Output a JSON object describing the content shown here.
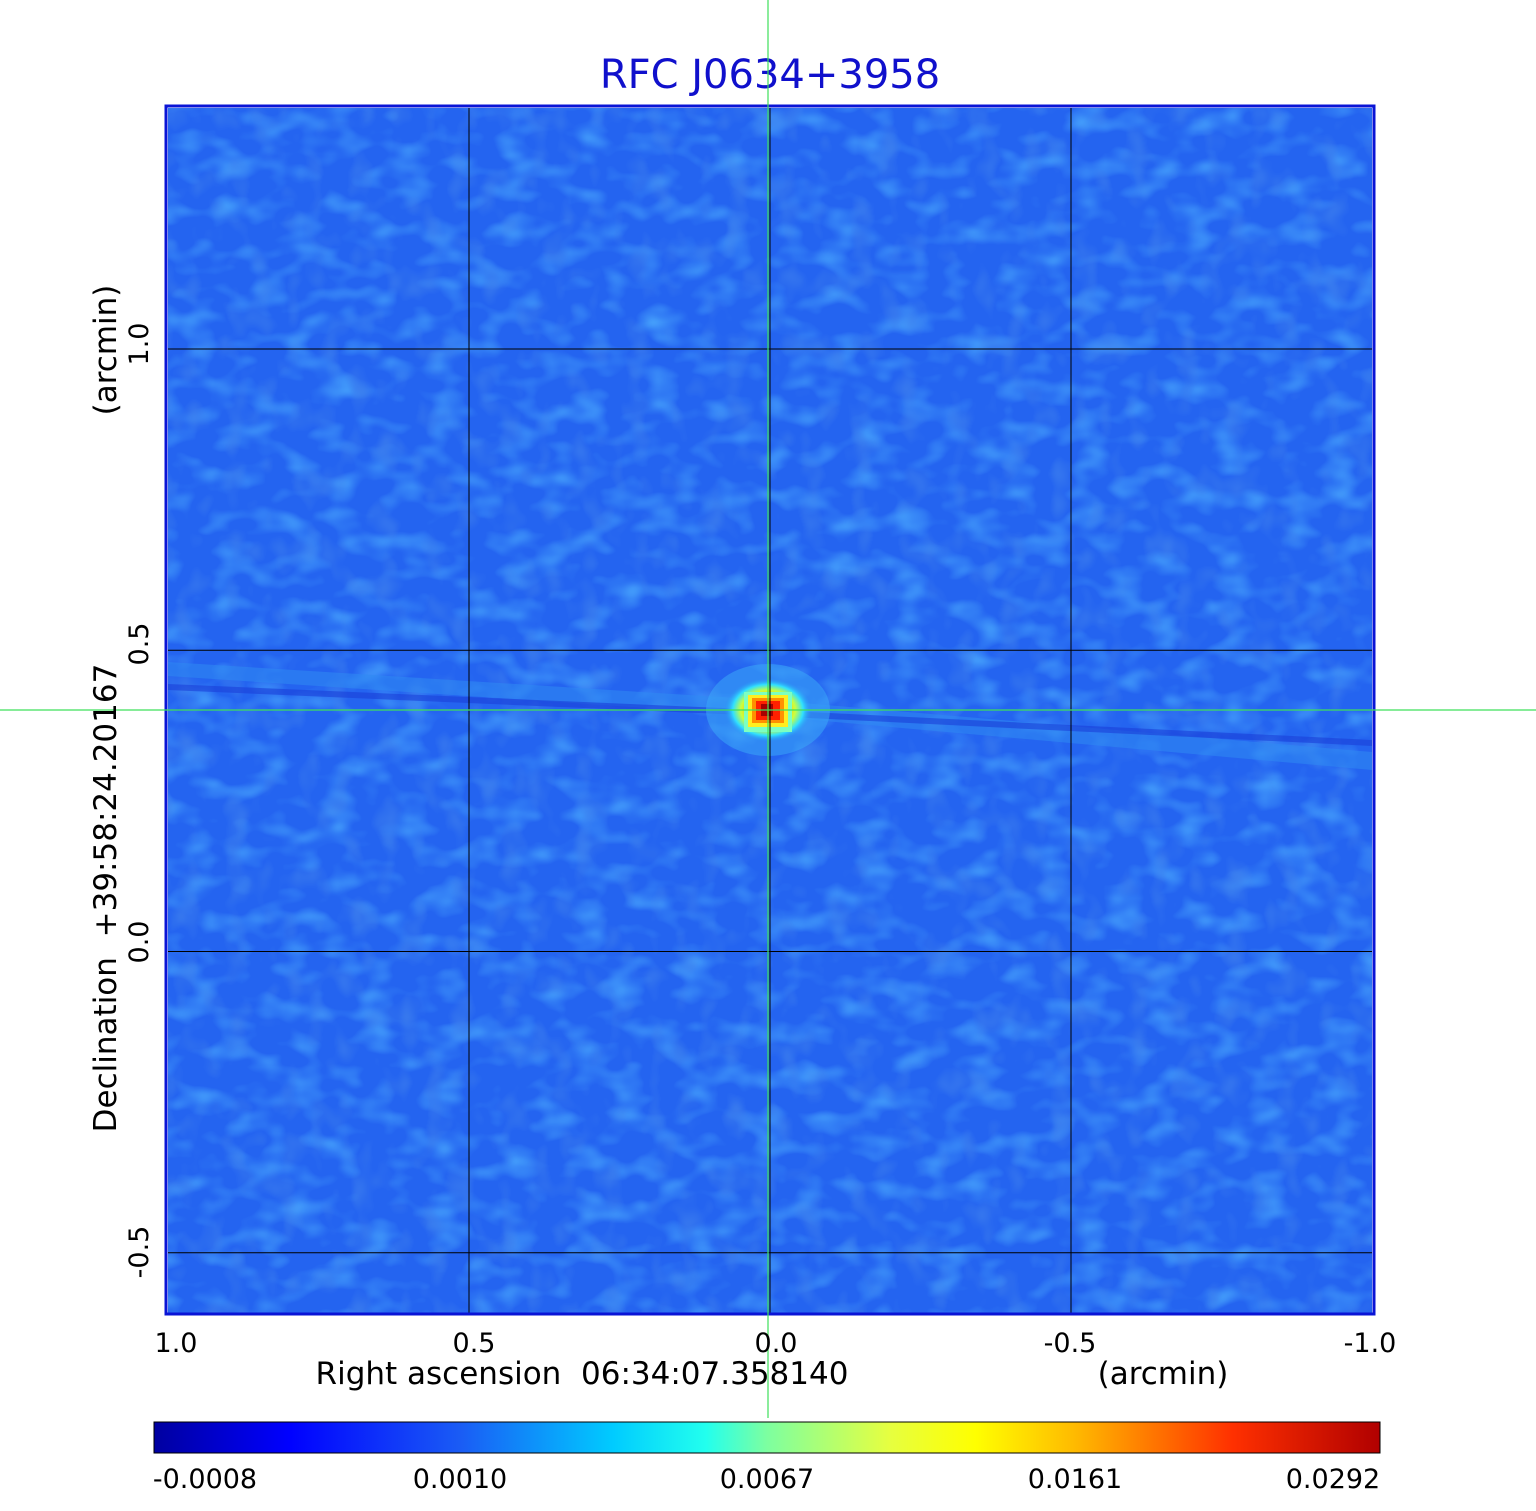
{
  "chart_data": {
    "type": "heatmap",
    "title": "RFC J0634+3958",
    "xlabel": "Right ascension  06:34:07.358140",
    "xunit": "(arcmin)",
    "ylabel": "Declination  +39:58:24.20167",
    "yunit": "(arcmin)",
    "xlim": [
      1.0,
      -1.0
    ],
    "ylim": [
      -0.6,
      1.4
    ],
    "x_ticks": [
      1.0,
      0.5,
      0.0,
      -0.5,
      -1.0
    ],
    "x_tick_labels": [
      "1.0",
      "0.5",
      "0.0",
      "-0.5",
      "-1.0"
    ],
    "y_ticks": [
      -0.5,
      0.0,
      0.5,
      1.0
    ],
    "y_tick_labels": [
      "-0.5",
      "0.0",
      "0.5",
      "1.0"
    ],
    "grid": true,
    "crosshair": {
      "x": 0.0,
      "y": 0.405,
      "color": "#3ee05a"
    },
    "source_peak": {
      "x": 0.0,
      "y": 0.405,
      "value": 0.0292
    },
    "colorbar": {
      "position": "bottom",
      "colormap": "jet",
      "min": -0.0008,
      "max": 0.0292,
      "tick_labels": [
        "-0.0008",
        "0.0010",
        "0.0067",
        "0.0161",
        "0.0292"
      ]
    },
    "colors": {
      "title": "#1010cc",
      "frame": "#0a14d6",
      "grid": "#000000",
      "background_field": "#2464f0"
    }
  }
}
